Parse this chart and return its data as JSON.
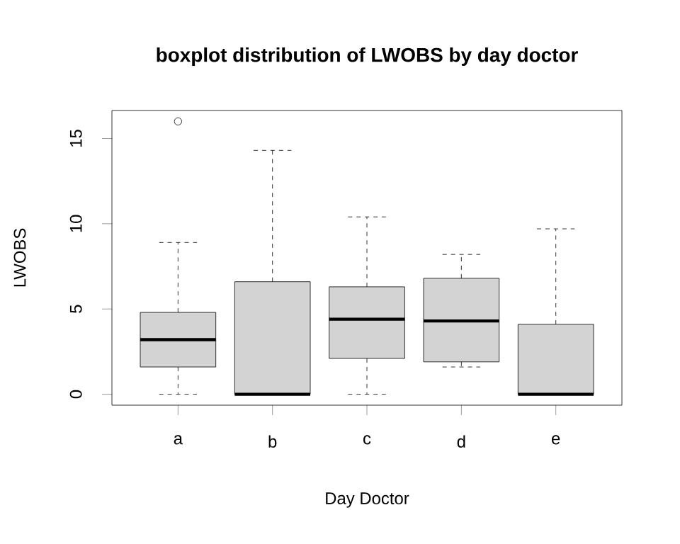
{
  "chart_data": {
    "type": "box",
    "title": "boxplot distribution of LWOBS by day doctor",
    "xlabel": "Day Doctor",
    "ylabel": "LWOBS",
    "categories": [
      "a",
      "b",
      "c",
      "d",
      "e"
    ],
    "color": "#d3d3d3",
    "marker": "circle",
    "boxes": [
      {
        "low": 0,
        "q1": 1.6,
        "median": 3.2,
        "q3": 4.8,
        "high": 8.9,
        "outliers": [
          16
        ]
      },
      {
        "low": 0,
        "q1": 0,
        "median": 0,
        "q3": 6.6,
        "high": 14.3
      },
      {
        "low": 0,
        "q1": 2.1,
        "median": 4.4,
        "q3": 6.3,
        "high": 10.4
      },
      {
        "low": 1.6,
        "q1": 1.9,
        "median": 4.3,
        "q3": 6.8,
        "high": 8.2
      },
      {
        "low": 0,
        "q1": 0,
        "median": 0,
        "q3": 4.1,
        "high": 9.7
      }
    ],
    "ylim": [
      -0.64,
      16.64
    ],
    "yticks": [
      0,
      5,
      10,
      15
    ]
  }
}
